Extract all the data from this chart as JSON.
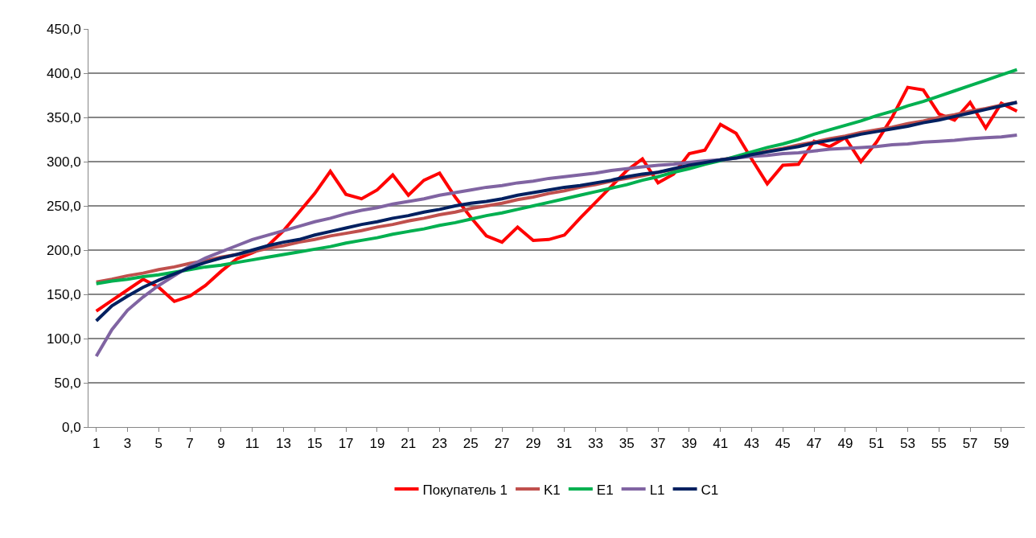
{
  "chart_data": {
    "type": "line",
    "x": [
      1,
      2,
      3,
      4,
      5,
      6,
      7,
      8,
      9,
      10,
      11,
      12,
      13,
      14,
      15,
      16,
      17,
      18,
      19,
      20,
      21,
      22,
      23,
      24,
      25,
      26,
      27,
      28,
      29,
      30,
      31,
      32,
      33,
      34,
      35,
      36,
      37,
      38,
      39,
      40,
      41,
      42,
      43,
      44,
      45,
      46,
      47,
      48,
      49,
      50,
      51,
      52,
      53,
      54,
      55,
      56,
      57,
      58,
      59,
      60
    ],
    "series": [
      {
        "name": "Покупатель 1",
        "color": "#ff0000",
        "values": [
          131,
          143,
          155,
          167,
          158,
          142,
          148,
          160,
          176,
          190,
          197,
          205,
          222,
          243,
          264,
          289,
          263,
          258,
          268,
          285,
          262,
          279,
          287,
          260,
          237,
          216,
          209,
          226,
          211,
          212,
          217,
          236,
          254,
          272,
          290,
          303,
          276,
          286,
          309,
          313,
          342,
          332,
          303,
          275,
          296,
          297,
          323,
          317,
          327,
          300,
          322,
          350,
          384,
          381,
          354,
          347,
          367,
          338,
          366,
          357
        ]
      },
      {
        "name": "K1",
        "color": "#c0504d",
        "values": [
          164,
          167,
          171,
          174,
          178,
          181,
          185,
          188,
          192,
          195,
          198,
          202,
          205,
          209,
          212,
          216,
          219,
          222,
          226,
          229,
          233,
          236,
          240,
          243,
          247,
          250,
          253,
          257,
          260,
          264,
          267,
          271,
          274,
          278,
          281,
          284,
          288,
          291,
          295,
          298,
          302,
          305,
          308,
          312,
          315,
          319,
          322,
          326,
          329,
          333,
          336,
          339,
          343,
          346,
          350,
          353,
          357,
          360,
          364,
          367
        ]
      },
      {
        "name": "E1",
        "color": "#00b050",
        "values": [
          162,
          165,
          167,
          170,
          172,
          175,
          178,
          181,
          183,
          186,
          189,
          192,
          195,
          198,
          201,
          204,
          208,
          211,
          214,
          218,
          221,
          224,
          228,
          231,
          235,
          239,
          242,
          246,
          250,
          254,
          258,
          262,
          266,
          270,
          274,
          279,
          283,
          288,
          292,
          297,
          301,
          306,
          311,
          316,
          320,
          325,
          331,
          336,
          341,
          346,
          352,
          357,
          363,
          368,
          374,
          380,
          386,
          392,
          398,
          404
        ]
      },
      {
        "name": "L1",
        "color": "#8064a2",
        "values": [
          80,
          110,
          132,
          147,
          160,
          171,
          182,
          191,
          198,
          205,
          212,
          217,
          222,
          227,
          232,
          236,
          241,
          245,
          248,
          252,
          255,
          258,
          262,
          265,
          268,
          271,
          273,
          276,
          278,
          281,
          283,
          285,
          287,
          290,
          292,
          294,
          296,
          297,
          299,
          301,
          302,
          304,
          306,
          307,
          309,
          310,
          312,
          314,
          315,
          316,
          317,
          319,
          320,
          322,
          323,
          324,
          326,
          327,
          328,
          330
        ]
      },
      {
        "name": "C1",
        "color": "#002060",
        "values": [
          120,
          137,
          148,
          158,
          166,
          173,
          180,
          186,
          191,
          195,
          200,
          205,
          209,
          212,
          217,
          221,
          225,
          229,
          232,
          236,
          239,
          243,
          246,
          250,
          253,
          255,
          258,
          262,
          265,
          268,
          271,
          273,
          276,
          279,
          283,
          286,
          288,
          292,
          296,
          299,
          302,
          304,
          308,
          311,
          314,
          317,
          321,
          324,
          327,
          331,
          334,
          337,
          340,
          344,
          347,
          351,
          355,
          359,
          363,
          367
        ]
      }
    ],
    "xlim": [
      0.5,
      60.5
    ],
    "xticks": [
      1,
      3,
      5,
      7,
      9,
      11,
      13,
      15,
      17,
      19,
      21,
      23,
      25,
      27,
      29,
      31,
      33,
      35,
      37,
      39,
      41,
      43,
      45,
      47,
      49,
      51,
      53,
      55,
      57,
      59
    ],
    "ylim": [
      0,
      450
    ],
    "yticks": [
      {
        "value": 0,
        "label": "0,0"
      },
      {
        "value": 50,
        "label": "50,0"
      },
      {
        "value": 100,
        "label": "100,0"
      },
      {
        "value": 150,
        "label": "150,0"
      },
      {
        "value": 200,
        "label": "200,0"
      },
      {
        "value": 250,
        "label": "250,0"
      },
      {
        "value": 300,
        "label": "300,0"
      },
      {
        "value": 350,
        "label": "350,0"
      },
      {
        "value": 400,
        "label": "400,0"
      },
      {
        "value": 450,
        "label": "450,0"
      }
    ],
    "grid": "y",
    "legend": "bottom",
    "marker": "none",
    "line_style": "solid"
  }
}
